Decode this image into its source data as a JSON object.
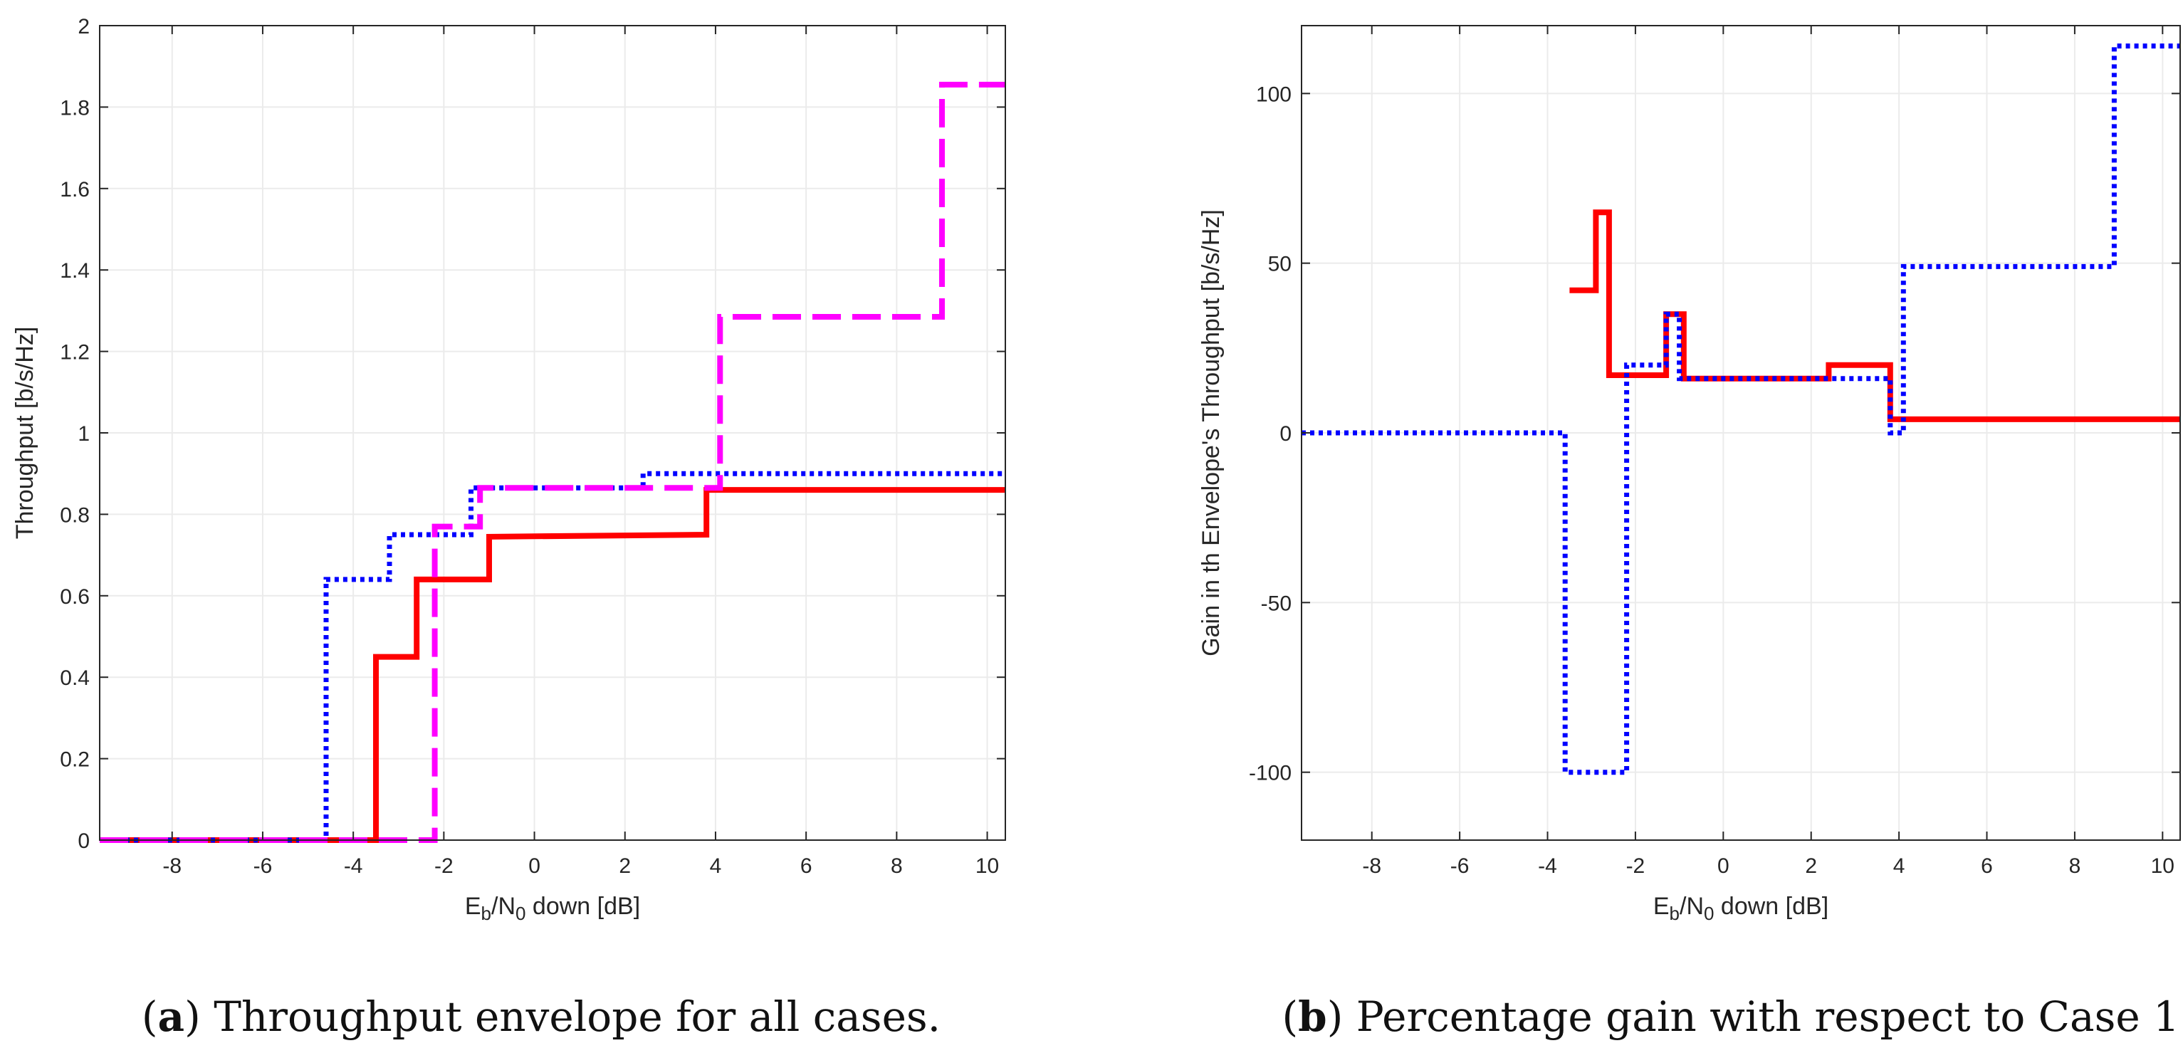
{
  "colors": {
    "red": "#ff0000",
    "blue": "#0000ff",
    "magenta": "#ff00ff",
    "grid": "#ebebeb",
    "axis": "#262626"
  },
  "chart_data": [
    {
      "type": "line",
      "panel": "a",
      "xlabel_main": "E",
      "xlabel_sub1": "b",
      "xlabel_mid": "/N",
      "xlabel_sub2": "0",
      "xlabel_tail": " down [dB]",
      "ylabel": "Throughput [b/s/Hz]",
      "xlim": [
        -9.6,
        10.4
      ],
      "ylim": [
        0,
        2
      ],
      "xticks": [
        -8,
        -6,
        -4,
        -2,
        0,
        2,
        4,
        6,
        8,
        10
      ],
      "yticks": [
        0,
        0.2,
        0.4,
        0.6,
        0.8,
        1,
        1.2,
        1.4,
        1.6,
        1.8,
        2
      ],
      "xtick_labels": [
        "-8",
        "-6",
        "-4",
        "-2",
        "0",
        "2",
        "4",
        "6",
        "8",
        "10"
      ],
      "ytick_labels": [
        "0",
        "0.2",
        "0.4",
        "0.6",
        "0.8",
        "1",
        "1.2",
        "1.4",
        "1.6",
        "1.8",
        "2"
      ],
      "grid": true,
      "series": [
        {
          "name": "red-solid",
          "color": "#ff0000",
          "style": "solid",
          "x": [
            -9.6,
            -3.5,
            -3.5,
            -2.6,
            -2.6,
            -1.0,
            -1.0,
            3.8,
            3.8,
            10.4
          ],
          "y": [
            0,
            0,
            0.45,
            0.45,
            0.64,
            0.64,
            0.745,
            0.75,
            0.86,
            0.86
          ]
        },
        {
          "name": "blue-dotted",
          "color": "#0000ff",
          "style": "dotted",
          "x": [
            -9.6,
            -4.6,
            -4.6,
            -3.2,
            -3.2,
            -1.4,
            -1.4,
            2.4,
            2.4,
            10.4
          ],
          "y": [
            0,
            0,
            0.64,
            0.64,
            0.75,
            0.75,
            0.865,
            0.865,
            0.9,
            0.9
          ]
        },
        {
          "name": "magenta-dashed",
          "color": "#ff00ff",
          "style": "dashed",
          "x": [
            -9.6,
            -2.2,
            -2.2,
            -1.2,
            -1.2,
            4.1,
            4.1,
            9.0,
            9.0,
            10.4
          ],
          "y": [
            0,
            0,
            0.77,
            0.77,
            0.865,
            0.865,
            1.285,
            1.285,
            1.855,
            1.855
          ]
        }
      ],
      "caption_letter": "a",
      "caption_text": "Throughput envelope for all cases."
    },
    {
      "type": "line",
      "panel": "b",
      "xlabel_main": "E",
      "xlabel_sub1": "b",
      "xlabel_mid": "/N",
      "xlabel_sub2": "0",
      "xlabel_tail": " down [dB]",
      "ylabel": "Gain in th Envelope's Throughput [b/s/Hz]",
      "xlim": [
        -9.6,
        10.4
      ],
      "ylim": [
        -120,
        120
      ],
      "xticks": [
        -8,
        -6,
        -4,
        -2,
        0,
        2,
        4,
        6,
        8,
        10
      ],
      "yticks": [
        -100,
        -50,
        0,
        50,
        100
      ],
      "xtick_labels": [
        "-8",
        "-6",
        "-4",
        "-2",
        "0",
        "2",
        "4",
        "6",
        "8",
        "10"
      ],
      "ytick_labels": [
        "-100",
        "-50",
        "0",
        "50",
        "100"
      ],
      "grid": true,
      "series": [
        {
          "name": "red-solid",
          "color": "#ff0000",
          "style": "solid",
          "x": [
            -3.5,
            -2.9,
            -2.9,
            -2.6,
            -2.6,
            -1.3,
            -1.3,
            -0.9,
            -0.9,
            2.4,
            2.4,
            3.8,
            3.8,
            10.4
          ],
          "y": [
            42,
            42,
            65,
            65,
            17,
            17,
            35,
            35,
            16,
            16,
            20,
            20,
            4,
            4
          ]
        },
        {
          "name": "blue-dotted",
          "color": "#0000ff",
          "style": "dotted",
          "x": [
            -9.6,
            -3.6,
            -3.6,
            -2.2,
            -2.2,
            -1.3,
            -1.3,
            -1.0,
            -1.0,
            3.8,
            3.8,
            4.1,
            4.1,
            8.9,
            8.9,
            10.4
          ],
          "y": [
            0,
            0,
            -100,
            -100,
            20,
            20,
            35,
            35,
            16,
            16,
            0,
            0,
            49,
            49,
            114,
            114
          ]
        }
      ],
      "caption_letter": "b",
      "caption_text": "Percentage gain with respect to Case 1."
    }
  ]
}
